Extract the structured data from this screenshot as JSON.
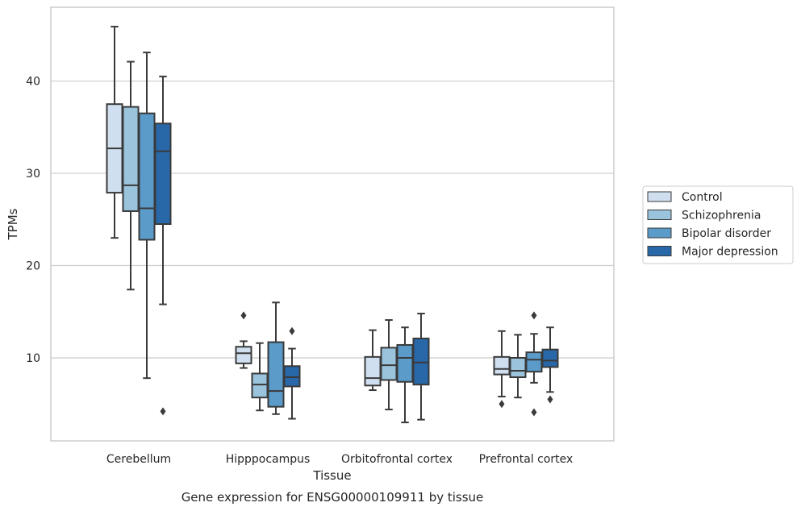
{
  "chart_data": {
    "type": "box",
    "title": "",
    "caption": "Gene expression for ENSG00000109911 by tissue",
    "xlabel": "Tissue",
    "ylabel": "TPMs",
    "ylim": [
      1,
      48
    ],
    "yticks": [
      10,
      20,
      30,
      40
    ],
    "grid": "horizontal",
    "legend_position": "right",
    "categories": [
      "Cerebellum",
      "Hipppocampus",
      "Orbitofrontal cortex",
      "Prefrontal cortex"
    ],
    "series": [
      {
        "name": "Control",
        "color": "#cfdfef",
        "boxes": [
          {
            "whisker_low": 23.0,
            "q1": 27.9,
            "median": 32.7,
            "q3": 37.5,
            "whisker_high": 45.9,
            "outliers": []
          },
          {
            "whisker_low": 8.9,
            "q1": 9.4,
            "median": 10.5,
            "q3": 11.2,
            "whisker_high": 11.8,
            "outliers": [
              14.6
            ]
          },
          {
            "whisker_low": 6.5,
            "q1": 7.0,
            "median": 7.8,
            "q3": 10.1,
            "whisker_high": 13.0,
            "outliers": []
          },
          {
            "whisker_low": 5.8,
            "q1": 8.2,
            "median": 8.8,
            "q3": 10.1,
            "whisker_high": 12.9,
            "outliers": [
              5.0
            ]
          }
        ]
      },
      {
        "name": "Schizophrenia",
        "color": "#9ac3dc",
        "boxes": [
          {
            "whisker_low": 17.4,
            "q1": 25.9,
            "median": 28.7,
            "q3": 37.2,
            "whisker_high": 42.1,
            "outliers": []
          },
          {
            "whisker_low": 4.3,
            "q1": 5.7,
            "median": 7.1,
            "q3": 8.3,
            "whisker_high": 11.6,
            "outliers": []
          },
          {
            "whisker_low": 4.4,
            "q1": 7.6,
            "median": 9.2,
            "q3": 11.1,
            "whisker_high": 14.1,
            "outliers": []
          },
          {
            "whisker_low": 5.7,
            "q1": 7.9,
            "median": 8.6,
            "q3": 10.0,
            "whisker_high": 12.5,
            "outliers": []
          }
        ]
      },
      {
        "name": "Bipolar disorder",
        "color": "#5a9bc9",
        "boxes": [
          {
            "whisker_low": 7.8,
            "q1": 22.8,
            "median": 26.2,
            "q3": 36.5,
            "whisker_high": 43.1,
            "outliers": []
          },
          {
            "whisker_low": 3.9,
            "q1": 4.7,
            "median": 6.4,
            "q3": 11.7,
            "whisker_high": 16.0,
            "outliers": []
          },
          {
            "whisker_low": 3.0,
            "q1": 7.4,
            "median": 10.0,
            "q3": 11.4,
            "whisker_high": 13.3,
            "outliers": []
          },
          {
            "whisker_low": 7.3,
            "q1": 8.5,
            "median": 9.8,
            "q3": 10.6,
            "whisker_high": 12.6,
            "outliers": [
              14.6,
              4.1
            ]
          }
        ]
      },
      {
        "name": "Major depression",
        "color": "#2868a9",
        "boxes": [
          {
            "whisker_low": 15.8,
            "q1": 24.5,
            "median": 32.4,
            "q3": 35.4,
            "whisker_high": 40.5,
            "outliers": [
              4.2
            ]
          },
          {
            "whisker_low": 3.4,
            "q1": 6.9,
            "median": 7.9,
            "q3": 9.1,
            "whisker_high": 11.0,
            "outliers": [
              12.9
            ]
          },
          {
            "whisker_low": 3.3,
            "q1": 7.1,
            "median": 9.5,
            "q3": 12.1,
            "whisker_high": 14.8,
            "outliers": []
          },
          {
            "whisker_low": 6.3,
            "q1": 9.0,
            "median": 9.7,
            "q3": 10.9,
            "whisker_high": 13.3,
            "outliers": [
              5.5
            ]
          }
        ]
      }
    ]
  }
}
